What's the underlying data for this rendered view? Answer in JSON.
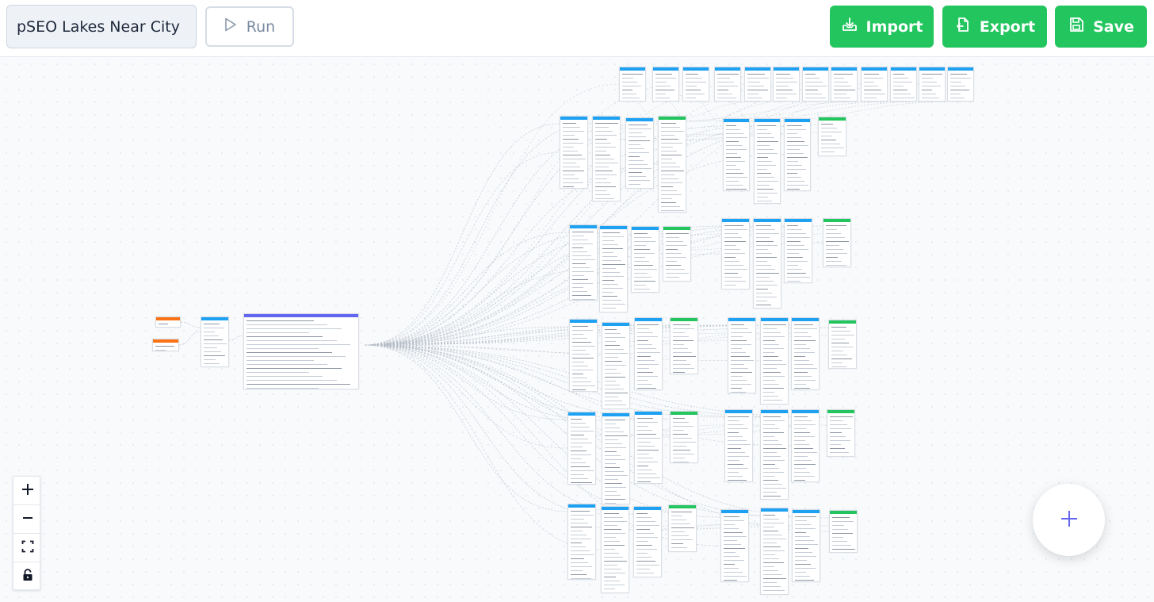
{
  "header": {
    "workflow_title": "pSEO Lakes Near City",
    "run_label": "Run",
    "import_label": "Import",
    "export_label": "Export",
    "save_label": "Save"
  },
  "icons": {
    "run": "play-icon",
    "import": "download-tray-icon",
    "export": "file-export-icon",
    "save": "floppy-disk-icon",
    "zoom_in": "plus-icon",
    "zoom_out": "minus-icon",
    "fit_view": "fit-view-icon",
    "lock": "lock-icon",
    "add_node": "plus-icon"
  },
  "colors": {
    "accent_green": "#22c55e",
    "node_header_blue": "#1da1f2",
    "node_header_green": "#22c55e",
    "node_header_orange": "#f97316",
    "node_header_purple": "#6366f1",
    "fab_plus": "#6366f1"
  }
}
